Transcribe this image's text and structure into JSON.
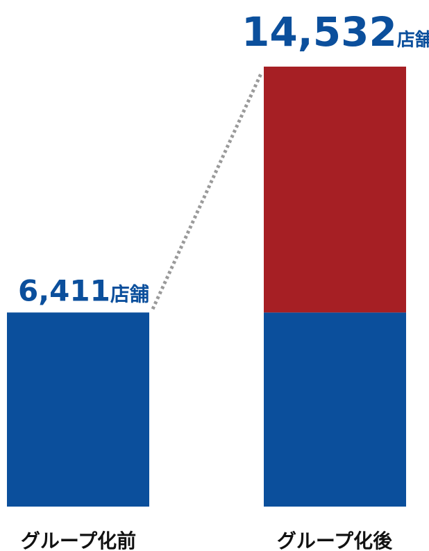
{
  "chart_data": {
    "type": "bar",
    "stacked": true,
    "categories": [
      "グループ化前",
      "グループ化後"
    ],
    "series": [
      {
        "values": [
          6411,
          6411
        ],
        "color": "#0b4f9c"
      },
      {
        "values": [
          0,
          8121
        ],
        "color": "#a61f24"
      }
    ],
    "totals": [
      6411,
      14532
    ],
    "value_labels": [
      {
        "number": "6,411",
        "unit": "店舗"
      },
      {
        "number": "14,532",
        "unit": "店舗"
      }
    ],
    "connector": "dotted",
    "ylim": [
      0,
      14532
    ],
    "grid": false,
    "legend": "none",
    "title": "",
    "xlabel": "",
    "ylabel": ""
  }
}
